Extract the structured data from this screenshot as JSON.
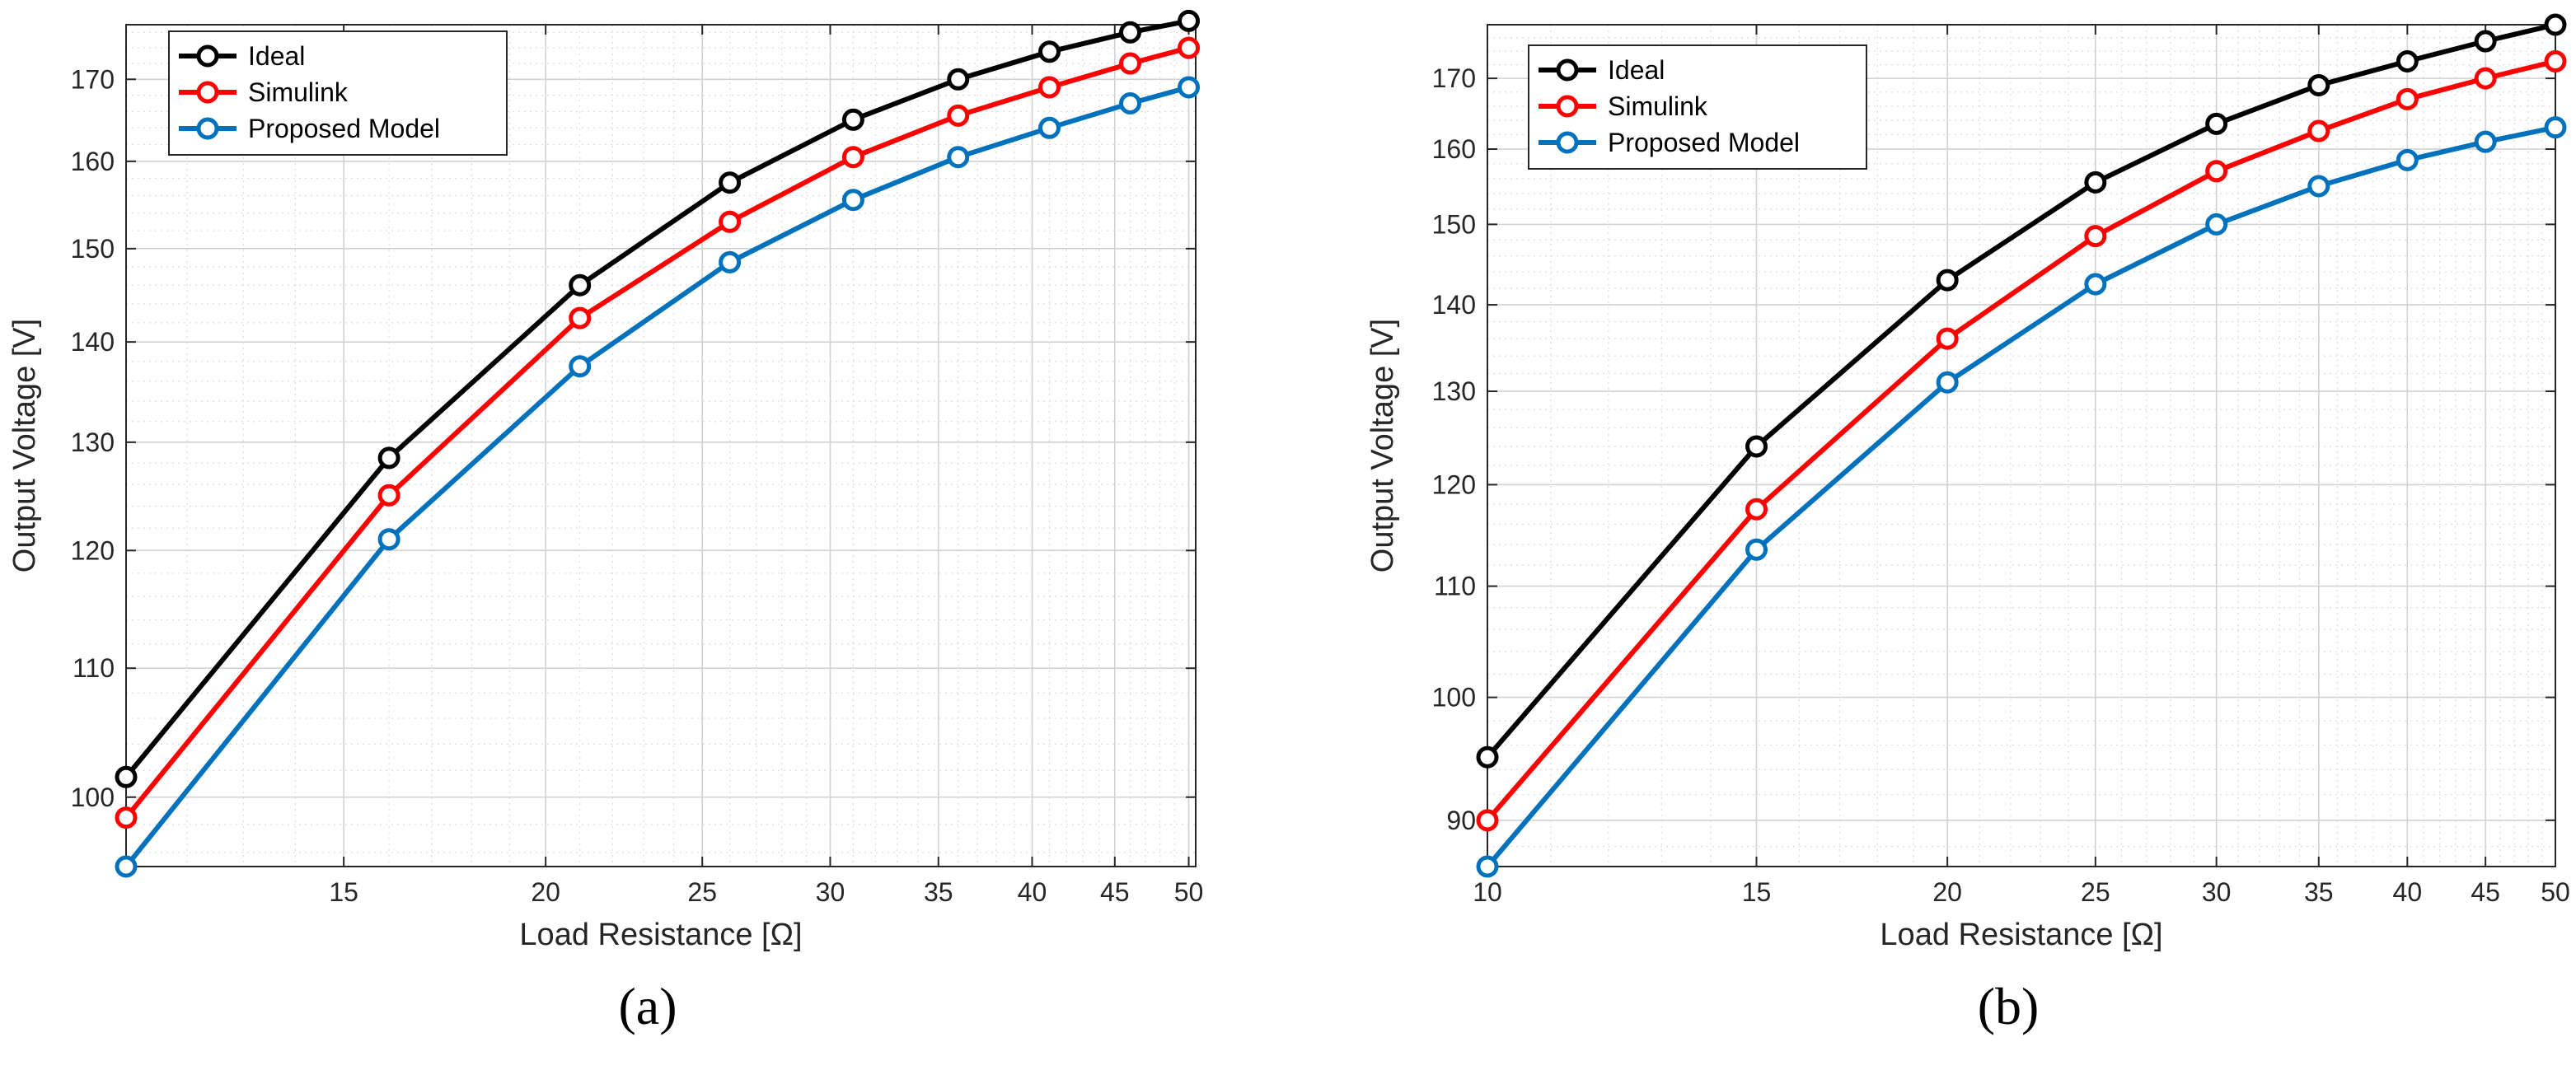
{
  "chart_data": [
    {
      "type": "line",
      "panel_label": "(a)",
      "xscale": "log",
      "yscale": "log",
      "xlabel": "Load Resistance [Ω]",
      "ylabel": "Output Voltage [V]",
      "xlim": [
        11,
        50.5
      ],
      "ylim": [
        95,
        177
      ],
      "xticks": [
        15,
        20,
        25,
        30,
        35,
        40,
        45,
        50
      ],
      "yticks": [
        100,
        110,
        120,
        130,
        140,
        150,
        160,
        170
      ],
      "grid": true,
      "legend_position": "top-left",
      "x": [
        11,
        16,
        21,
        26,
        31,
        36,
        41,
        46,
        50
      ],
      "series": [
        {
          "name": "Ideal",
          "color": "#000000",
          "values": [
            101.5,
            128.5,
            146,
            157.5,
            165,
            170,
            173.5,
            176,
            177.5
          ]
        },
        {
          "name": "Simulink",
          "color": "#ff0000",
          "values": [
            98.5,
            125,
            142.5,
            153,
            160.5,
            165.5,
            169,
            172,
            174
          ]
        },
        {
          "name": "Proposed Model",
          "color": "#0072bd",
          "values": [
            95,
            121,
            137.5,
            148.5,
            155.5,
            160.5,
            164,
            167,
            169
          ]
        }
      ]
    },
    {
      "type": "line",
      "panel_label": "(b)",
      "xscale": "log",
      "yscale": "log",
      "xlabel": "Load Resistance [Ω]",
      "ylabel": "Output Voltage [V]",
      "xlim": [
        10,
        50
      ],
      "ylim": [
        86.5,
        178
      ],
      "xticks": [
        10,
        15,
        20,
        25,
        30,
        35,
        40,
        45,
        50
      ],
      "yticks": [
        90,
        100,
        110,
        120,
        130,
        140,
        150,
        160,
        170
      ],
      "grid": true,
      "legend_position": "top-left",
      "x": [
        10,
        15,
        20,
        25,
        30,
        35,
        40,
        45,
        50
      ],
      "series": [
        {
          "name": "Ideal",
          "color": "#000000",
          "values": [
            95,
            124,
            143,
            155.5,
            163.5,
            169,
            172.5,
            175.5,
            178
          ]
        },
        {
          "name": "Simulink",
          "color": "#ff0000",
          "values": [
            90,
            117.5,
            136,
            148.5,
            157,
            162.5,
            167,
            170,
            172.5
          ]
        },
        {
          "name": "Proposed Model",
          "color": "#0072bd",
          "values": [
            86.5,
            113.5,
            131,
            142.5,
            150,
            155,
            158.5,
            161,
            163
          ]
        }
      ]
    }
  ]
}
